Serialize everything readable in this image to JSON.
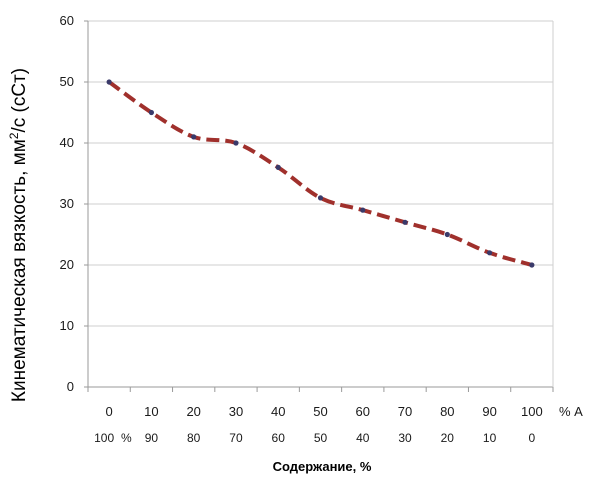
{
  "chart_data": {
    "type": "line",
    "title": "",
    "ylabel_main": "Кинематическая вязкость, мм",
    "ylabel_sup": "2",
    "ylabel_tail": "/с (сСт)",
    "xlabel": "Содержание, %",
    "x_row1": [
      "0",
      "10",
      "20",
      "30",
      "40",
      "50",
      "60",
      "70",
      "80",
      "90",
      "100"
    ],
    "x_row1_suffix": "% А",
    "x_row2": [
      "100",
      "90",
      "80",
      "70",
      "60",
      "50",
      "40",
      "30",
      "20",
      "10",
      "0"
    ],
    "x_row2_prefix_suffix": "%",
    "x": [
      0,
      10,
      20,
      30,
      40,
      50,
      60,
      70,
      80,
      90,
      100
    ],
    "series": [
      {
        "values": [
          50,
          45,
          41,
          40,
          36,
          31,
          29,
          27,
          25,
          22,
          20
        ]
      }
    ],
    "yticks": [
      "0",
      "10",
      "20",
      "30",
      "40",
      "50",
      "60"
    ],
    "ylim": [
      0,
      60
    ],
    "grid": true,
    "line_color": "#a0302c",
    "marker_color": "#3a3a6a",
    "grid_color": "#cfcfcf"
  }
}
